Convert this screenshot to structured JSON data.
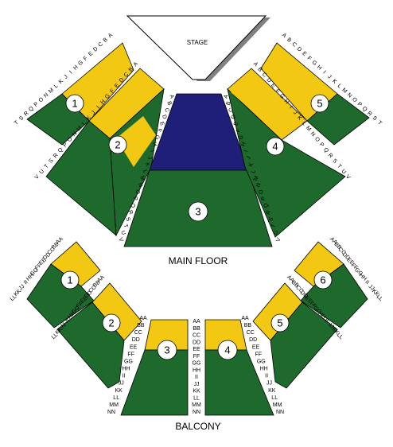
{
  "stage": {
    "label": "STAGE"
  },
  "levels": {
    "main_floor": "MAIN FLOOR",
    "balcony": "BALCONY"
  },
  "colors": {
    "front_rows": "#f2c812",
    "rear_rows": "#1e6a2c",
    "center_front": "#1f1f7a",
    "outline": "#000000",
    "stage_shadow": "#808080"
  },
  "main_floor_sections": [
    "1",
    "2",
    "3",
    "4",
    "5"
  ],
  "balcony_sections": [
    "1",
    "2",
    "3",
    "4",
    "5",
    "6"
  ],
  "main_rows": {
    "sec1_outer": [
      "T",
      "S",
      "R",
      "Q",
      "P",
      "O",
      "N",
      "M",
      "L",
      "K",
      "J",
      "I",
      "H",
      "G",
      "F",
      "E",
      "D",
      "C",
      "B",
      "A"
    ],
    "sec1_inner": [
      "V",
      "U",
      "T",
      "S",
      "R",
      "Q",
      "P",
      "O",
      "N",
      "M",
      "L",
      "K",
      "J",
      "I",
      "H",
      "G",
      "F",
      "E",
      "D",
      "C",
      "B",
      "A"
    ],
    "sec3_left": [
      "A",
      "B",
      "C",
      "D",
      "E",
      "F",
      "G",
      "H",
      "I",
      "J",
      "K",
      "L",
      "M",
      "N",
      "O",
      "P",
      "Q",
      "R",
      "S",
      "T",
      "U",
      "V"
    ],
    "sec3_right": [
      "A",
      "B",
      "C",
      "D",
      "E",
      "F",
      "G",
      "H",
      "I",
      "J",
      "K",
      "L",
      "M",
      "N",
      "O",
      "P",
      "Q",
      "R",
      "S",
      "T",
      "U",
      "V"
    ],
    "sec5_inner": [
      "A",
      "B",
      "C",
      "D",
      "E",
      "F",
      "G",
      "H",
      "I",
      "J",
      "K",
      "L",
      "M",
      "N",
      "O",
      "P",
      "Q",
      "R",
      "S",
      "T",
      "U",
      "V"
    ],
    "sec5_outer": [
      "A",
      "B",
      "C",
      "D",
      "E",
      "F",
      "G",
      "H",
      "I",
      "J",
      "K",
      "L",
      "M",
      "N",
      "O",
      "P",
      "Q",
      "R",
      "S",
      "T"
    ]
  },
  "balcony_rows": {
    "b1_left": [
      "LL",
      "KK",
      "JJ",
      "II",
      "HH",
      "GG",
      "FF",
      "EE",
      "DD",
      "CC",
      "BB",
      "AA"
    ],
    "b1_right": [
      "LL",
      "KK",
      "JJ",
      "II",
      "HH",
      "GG",
      "FF",
      "EE",
      "DD",
      "CC",
      "BB",
      "AA"
    ],
    "b_center_left": [
      "AA",
      "BB",
      "CC",
      "DD",
      "EE",
      "FF",
      "GG",
      "HH",
      "II",
      "JJ",
      "KK",
      "LL",
      "MM",
      "NN"
    ],
    "b_center_mid": [
      "AA",
      "BB",
      "CC",
      "DD",
      "EE",
      "FF",
      "GG",
      "HH",
      "II",
      "JJ",
      "KK",
      "LL",
      "MM",
      "NN"
    ],
    "b_center_right": [
      "AA",
      "BB",
      "CC",
      "DD",
      "EE",
      "FF",
      "GG",
      "HH",
      "II",
      "JJ",
      "KK",
      "LL",
      "MM",
      "NN"
    ],
    "b6_left": [
      "AA",
      "BB",
      "CC",
      "DD",
      "EE",
      "FF",
      "GG",
      "HH",
      "II",
      "JJ",
      "KK",
      "LL"
    ],
    "b6_right": [
      "AA",
      "BB",
      "CC",
      "DD",
      "EE",
      "FF",
      "GG",
      "HH",
      "II",
      "JJ",
      "KK",
      "LL"
    ]
  }
}
